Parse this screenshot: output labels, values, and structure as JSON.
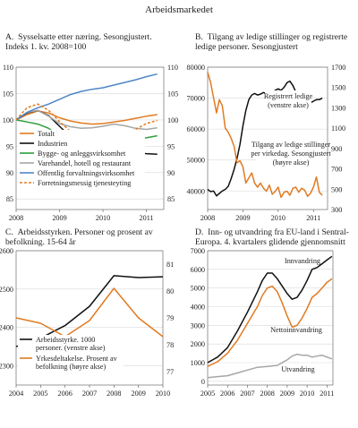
{
  "figure_title": "Arbeidsmarkedet",
  "colors": {
    "black": "#111111",
    "orange": "#E07B22",
    "green": "#2E9E3E",
    "blue": "#4F86C6",
    "gray": "#A6A6A6",
    "grid": "#D9D9D9"
  },
  "chart_data": [
    {
      "id": "A",
      "type": "line",
      "title": "A.  Sysselsatte etter næring. Sesongjustert. Indeks 1. kv. 2008=100",
      "title_lines": [
        "A.  Sysselsatte etter næring. Sesongjustert.",
        "Indeks 1. kv. 2008=100"
      ],
      "xlim": [
        2008,
        2011.4
      ],
      "ylim": [
        83,
        110
      ],
      "x_ticks": [
        "2008",
        "2009",
        "2010",
        "2011"
      ],
      "y_ticks_left": [
        "85",
        "90",
        "95",
        "100",
        "105",
        "110"
      ],
      "y_ticks_right": [
        "85",
        "90",
        "95",
        "100",
        "105",
        "110"
      ],
      "grid": true,
      "legend_placement": "bottom-left",
      "series": [
        {
          "name": "Totalt",
          "color": "#E07B22",
          "dash": false,
          "x": [
            2008,
            2008.25,
            2008.5,
            2008.75,
            2009,
            2009.25,
            2009.5,
            2009.75,
            2010,
            2010.25,
            2010.5,
            2010.75,
            2011,
            2011.25
          ],
          "y": [
            100,
            101,
            101.7,
            101.3,
            100.4,
            99.8,
            99.4,
            99.2,
            99.3,
            99.6,
            99.9,
            100.3,
            100.7,
            101.0
          ]
        },
        {
          "name": "Industrien",
          "color": "#111111",
          "dash": false,
          "x": [
            2008,
            2008.25,
            2008.5,
            2008.75,
            2009,
            2009.25,
            2009.5,
            2009.75,
            2010,
            2010.25,
            2010.5,
            2010.75,
            2011,
            2011.25
          ],
          "y": [
            100,
            101.3,
            101.8,
            100.8,
            98.8,
            96.8,
            95.2,
            93.8,
            92.6,
            92.7,
            93.2,
            93.8,
            93.6,
            93.5
          ]
        },
        {
          "name": "Bygge- og anleggsvirksomhet",
          "color": "#2E9E3E",
          "dash": false,
          "x": [
            2008,
            2008.25,
            2008.5,
            2008.75,
            2009,
            2009.25,
            2009.5,
            2009.75,
            2010,
            2010.25,
            2010.5,
            2010.75,
            2011,
            2011.25
          ],
          "y": [
            100,
            99.6,
            99.2,
            98.4,
            96.8,
            95.3,
            94.4,
            94.2,
            94.3,
            94.9,
            95.9,
            96.4,
            96.6,
            97.0
          ]
        },
        {
          "name": "Varehandel, hotell og restaurant",
          "color": "#A6A6A6",
          "dash": false,
          "x": [
            2008,
            2008.25,
            2008.5,
            2008.75,
            2009,
            2009.25,
            2009.5,
            2009.75,
            2010,
            2010.25,
            2010.5,
            2010.75,
            2011,
            2011.25
          ],
          "y": [
            100,
            101.4,
            101.8,
            100.7,
            99.3,
            98.7,
            98.4,
            98.5,
            98.8,
            99.2,
            98.9,
            98.4,
            98.2,
            98.5
          ]
        },
        {
          "name": "Offentlig forvaltningsvirksomhet",
          "color": "#4F86C6",
          "dash": false,
          "x": [
            2008,
            2008.25,
            2008.5,
            2008.75,
            2009,
            2009.25,
            2009.5,
            2009.75,
            2010,
            2010.25,
            2010.5,
            2010.75,
            2011,
            2011.25
          ],
          "y": [
            100,
            101.4,
            102.3,
            103.0,
            103.9,
            104.8,
            105.4,
            105.8,
            106.1,
            106.6,
            107.1,
            107.6,
            108.2,
            108.7
          ]
        },
        {
          "name": "Forretningsmessig tjenesteyting",
          "color": "#E07B22",
          "dash": true,
          "x": [
            2008,
            2008.25,
            2008.5,
            2008.75,
            2009,
            2009.25,
            2009.5,
            2009.75,
            2010,
            2010.25,
            2010.5,
            2010.75,
            2011,
            2011.25
          ],
          "y": [
            100,
            102.3,
            103.0,
            101.8,
            99.7,
            97.8,
            97.2,
            97.0,
            97.6,
            98.0,
            97.3,
            98.2,
            99.3,
            99.9
          ]
        }
      ]
    },
    {
      "id": "B",
      "type": "line",
      "title": "B.  Tilgang av ledige stillinger og registrerte ledige personer. Sesongjustert",
      "title_lines": [
        "B.  Tilgang av ledige stillinger og registrerte",
        "ledige personer. Sesongjustert"
      ],
      "xlim": [
        2008,
        2011.4
      ],
      "ylim_left": [
        34000,
        80000
      ],
      "ylim_right": [
        300,
        1700
      ],
      "x_ticks": [
        "2008",
        "2009",
        "2010",
        "2011"
      ],
      "y_ticks_left": [
        "40000",
        "50000",
        "60000",
        "70000",
        "80000"
      ],
      "y_ticks_right": [
        "300",
        "500",
        "700",
        "900",
        "1100",
        "1300",
        "1500",
        "1700"
      ],
      "grid": true,
      "series": [
        {
          "name": "Registrert ledige (venstre akse)",
          "axis": "left",
          "color": "#111111",
          "x": [
            2008,
            2008.083,
            2008.167,
            2008.25,
            2008.333,
            2008.417,
            2008.5,
            2008.583,
            2008.667,
            2008.75,
            2008.833,
            2008.917,
            2009,
            2009.083,
            2009.167,
            2009.25,
            2009.333,
            2009.417,
            2009.5,
            2009.583,
            2009.667,
            2009.75,
            2009.833,
            2009.917,
            2010,
            2010.083,
            2010.167,
            2010.25,
            2010.333,
            2010.417,
            2010.5,
            2010.583,
            2010.667,
            2010.75,
            2010.833,
            2010.917,
            2011,
            2011.083,
            2011.167,
            2011.25
          ],
          "y": [
            40500,
            39800,
            40000,
            38400,
            39200,
            40000,
            40500,
            41500,
            44000,
            47000,
            50500,
            55000,
            61000,
            66000,
            69500,
            71000,
            71500,
            71000,
            71300,
            71800,
            71500,
            71000,
            72000,
            72500,
            73000,
            72500,
            73500,
            75000,
            75500,
            74000,
            72000,
            71000,
            69500,
            68500,
            68000,
            68500,
            69000,
            69500,
            69500,
            70000
          ]
        },
        {
          "name": "Tilgang av ledige stillinger per virkedag. Sesongjustert (høyre akse)",
          "axis": "right",
          "color": "#E07B22",
          "x": [
            2008,
            2008.083,
            2008.167,
            2008.25,
            2008.333,
            2008.417,
            2008.5,
            2008.583,
            2008.667,
            2008.75,
            2008.833,
            2008.917,
            2009,
            2009.083,
            2009.167,
            2009.25,
            2009.333,
            2009.417,
            2009.5,
            2009.583,
            2009.667,
            2009.75,
            2009.833,
            2009.917,
            2010,
            2010.083,
            2010.167,
            2010.25,
            2010.333,
            2010.417,
            2010.5,
            2010.583,
            2010.667,
            2010.75,
            2010.833,
            2010.917,
            2011,
            2011.083,
            2011.167,
            2011.25
          ],
          "y": [
            1650,
            1550,
            1400,
            1250,
            1380,
            1320,
            1100,
            1060,
            1000,
            920,
            760,
            780,
            720,
            560,
            610,
            660,
            560,
            520,
            560,
            510,
            480,
            540,
            450,
            480,
            520,
            420,
            470,
            480,
            440,
            510,
            520,
            470,
            510,
            490,
            430,
            460,
            520,
            620,
            470,
            440
          ]
        }
      ],
      "annotations": [
        {
          "lines": [
            "Registrert ledige",
            "(venstre akse)"
          ]
        },
        {
          "lines": [
            "Tilgang av ledige stillinger",
            "per virkedag. Sesongjustert",
            "(høyre akse)"
          ]
        }
      ]
    },
    {
      "id": "C",
      "type": "line",
      "title": "C.  Arbeidsstyrken. Personer og prosent av befolkning. 15-64 år",
      "title_lines": [
        "C.  Arbeidsstyrken. Personer og prosent av",
        "befolkning. 15-64 år"
      ],
      "xlim": [
        2004,
        2010
      ],
      "ylim_left": [
        2250,
        2600
      ],
      "ylim_right": [
        76.5,
        81.5
      ],
      "x_ticks": [
        "2004",
        "2005",
        "2006",
        "2007",
        "2008",
        "2009",
        "2010"
      ],
      "y_ticks_left": [
        "2300",
        "2400",
        "2500",
        "2600"
      ],
      "y_ticks_right": [
        "77",
        "78",
        "79",
        "80",
        "81"
      ],
      "grid": true,
      "legend_placement": "bottom-left",
      "series": [
        {
          "name": "Arbeidsstyrke. 1000 personer. (venstre akse)",
          "legend_lines": [
            "Arbeidsstyrke. 1000",
            "personer. (venstre akse)"
          ],
          "axis": "left",
          "color": "#111111",
          "x": [
            2004,
            2005,
            2006,
            2007,
            2008,
            2009,
            2010
          ],
          "y": [
            2350,
            2372,
            2405,
            2455,
            2535,
            2530,
            2532
          ]
        },
        {
          "name": "Yrkesdeltakelse. Prosent av befolkning (høyre akse)",
          "legend_lines": [
            "Yrkesdeltakelse. Prosent av",
            "befolkning (høyre akse)"
          ],
          "axis": "right",
          "color": "#E07B22",
          "x": [
            2004,
            2005,
            2006,
            2007,
            2008,
            2009,
            2010
          ],
          "y": [
            79.0,
            78.8,
            78.3,
            78.9,
            80.1,
            79.0,
            78.3
          ]
        }
      ]
    },
    {
      "id": "D",
      "type": "line",
      "title": "D.  Inn- og utvandring fra EU-land i Sentral-Europa. 4. kvartalers glidende gjennomsnitt",
      "title_lines": [
        "D.  Inn- og utvandring fra EU-land i Sentral-",
        "Europa. 4. kvartalers glidende gjennomsnitt"
      ],
      "xlim": [
        2005,
        2011.3
      ],
      "ylim": [
        -200,
        7000
      ],
      "x_ticks": [
        "2005",
        "2006",
        "2007",
        "2008",
        "2009",
        "2010",
        "2011"
      ],
      "y_ticks": [
        "0",
        "1000",
        "2000",
        "3000",
        "4000",
        "5000",
        "6000",
        "7000"
      ],
      "grid": true,
      "series": [
        {
          "name": "Innvandring",
          "color": "#111111",
          "x": [
            2005,
            2005.5,
            2006,
            2006.5,
            2007,
            2007.5,
            2007.75,
            2008,
            2008.25,
            2008.5,
            2008.75,
            2009,
            2009.25,
            2009.5,
            2009.75,
            2010,
            2010.25,
            2010.5,
            2010.75,
            2011,
            2011.25
          ],
          "y": [
            1000,
            1300,
            1800,
            2700,
            3700,
            4800,
            5400,
            5800,
            5800,
            5500,
            5100,
            4700,
            4400,
            4500,
            4900,
            5400,
            6000,
            6100,
            6300,
            6500,
            6700
          ]
        },
        {
          "name": "Nettoinnvandring",
          "color": "#E07B22",
          "x": [
            2005,
            2005.5,
            2006,
            2006.5,
            2007,
            2007.5,
            2007.75,
            2008,
            2008.25,
            2008.5,
            2008.75,
            2009,
            2009.25,
            2009.5,
            2009.75,
            2010,
            2010.25,
            2010.5,
            2010.75,
            2011,
            2011.25
          ],
          "y": [
            800,
            1050,
            1500,
            2200,
            3100,
            4000,
            4600,
            5000,
            5100,
            4800,
            4200,
            3500,
            2900,
            3000,
            3400,
            3900,
            4500,
            4700,
            5000,
            5300,
            5500
          ]
        },
        {
          "name": "Utvandring",
          "color": "#A6A6A6",
          "x": [
            2005,
            2005.5,
            2006,
            2006.5,
            2007,
            2007.5,
            2008,
            2008.5,
            2009,
            2009.25,
            2009.5,
            2009.75,
            2010,
            2010.25,
            2010.5,
            2010.75,
            2011,
            2011.25
          ],
          "y": [
            200,
            250,
            300,
            450,
            600,
            750,
            800,
            850,
            1150,
            1350,
            1450,
            1400,
            1400,
            1300,
            1350,
            1400,
            1300,
            1200
          ]
        }
      ]
    }
  ]
}
